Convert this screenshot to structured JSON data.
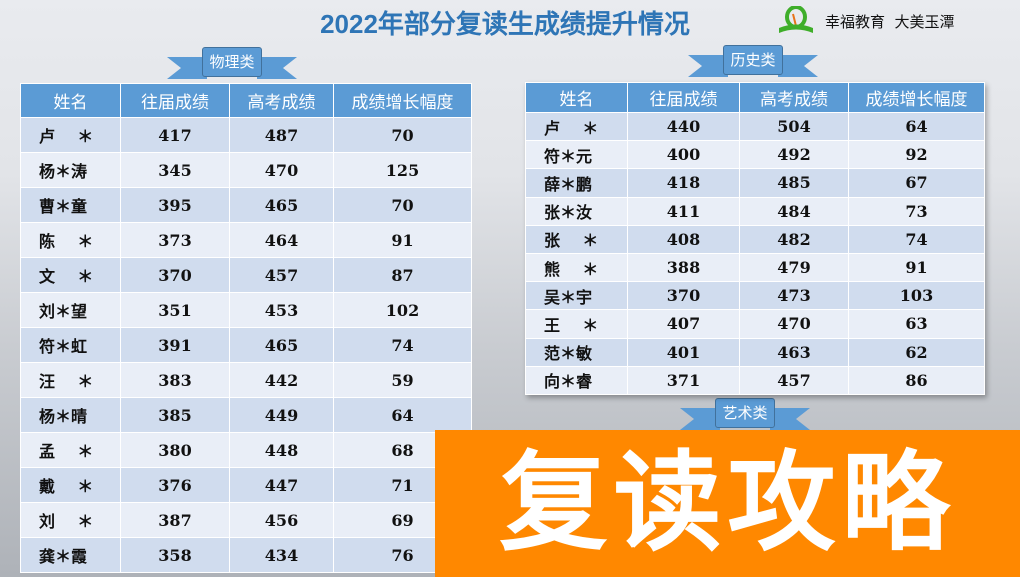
{
  "title": "2022年部分复读生成绩提升情况",
  "logo": {
    "text": "幸福教育  大美玉潭",
    "icon": "sprout-book-logo"
  },
  "headers": [
    "姓名",
    "往届成绩",
    "高考成绩",
    "成绩增长幅度"
  ],
  "physics": {
    "label": "物理类",
    "rows": [
      [
        "卢    ＊",
        "417",
        "487",
        "70"
      ],
      [
        "杨＊涛",
        "345",
        "470",
        "125"
      ],
      [
        "曹＊童",
        "395",
        "465",
        "70"
      ],
      [
        "陈    ＊",
        "373",
        "464",
        "91"
      ],
      [
        "文    ＊",
        "370",
        "457",
        "87"
      ],
      [
        "刘＊望",
        "351",
        "453",
        "102"
      ],
      [
        "符＊虹",
        "391",
        "465",
        "74"
      ],
      [
        "汪    ＊",
        "383",
        "442",
        "59"
      ],
      [
        "杨＊晴",
        "385",
        "449",
        "64"
      ],
      [
        "孟    ＊",
        "380",
        "448",
        "68"
      ],
      [
        "戴    ＊",
        "376",
        "447",
        "71"
      ],
      [
        "刘    ＊",
        "387",
        "456",
        "69"
      ],
      [
        "龚＊霞",
        "358",
        "434",
        "76"
      ]
    ]
  },
  "history": {
    "label": "历史类",
    "rows": [
      [
        "卢    ＊",
        "440",
        "504",
        "64"
      ],
      [
        "符＊元",
        "400",
        "492",
        "92"
      ],
      [
        "薛＊鹏",
        "418",
        "485",
        "67"
      ],
      [
        "张＊汝",
        "411",
        "484",
        "73"
      ],
      [
        "张    ＊",
        "408",
        "482",
        "74"
      ],
      [
        "熊    ＊",
        "388",
        "479",
        "91"
      ],
      [
        "吴＊宇",
        "370",
        "473",
        "103"
      ],
      [
        "王    ＊",
        "407",
        "470",
        "63"
      ],
      [
        "范＊敏",
        "401",
        "463",
        "62"
      ],
      [
        "向＊睿",
        "371",
        "457",
        "86"
      ]
    ]
  },
  "art": {
    "label": "艺术类"
  },
  "promo": "复读攻略",
  "colors": {
    "title": "#2e75b6",
    "header": "#5b9bd5",
    "promo": "#ff8800"
  }
}
